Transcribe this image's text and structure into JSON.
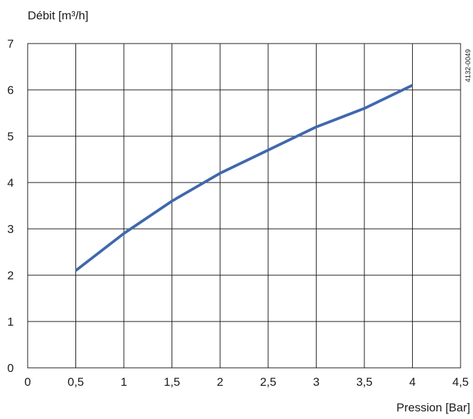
{
  "chart_data": {
    "type": "line",
    "ylabel": "Débit [m³/h]",
    "xlabel": "Pression [Bar]",
    "reference": "4132-0049",
    "xlim": [
      0,
      4.5
    ],
    "ylim": [
      0,
      7
    ],
    "x_ticks": [
      "0",
      "0,5",
      "1",
      "1,5",
      "2",
      "2,5",
      "3",
      "3,5",
      "4",
      "4,5"
    ],
    "y_ticks": [
      "0",
      "1",
      "2",
      "3",
      "4",
      "5",
      "6",
      "7"
    ],
    "grid": true,
    "line_color": "#4068ad",
    "series": [
      {
        "x": [
          0.5,
          1.0,
          1.5,
          2.0,
          2.5,
          3.0,
          3.5,
          4.0
        ],
        "y": [
          2.1,
          2.9,
          3.6,
          4.2,
          4.7,
          5.2,
          5.6,
          6.1
        ]
      }
    ]
  }
}
